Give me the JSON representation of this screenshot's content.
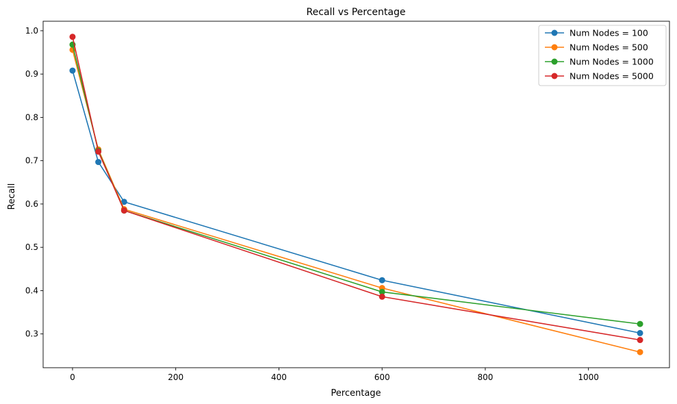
{
  "chart_data": {
    "type": "line",
    "title": "Recall vs Percentage",
    "xlabel": "Percentage",
    "ylabel": "Recall",
    "x": [
      0,
      50,
      100,
      600,
      1100
    ],
    "xlim": [
      -57,
      1157
    ],
    "ylim": [
      0.222,
      1.022
    ],
    "xticks": [
      0,
      200,
      400,
      600,
      800,
      1000
    ],
    "yticks": [
      0.3,
      0.4,
      0.5,
      0.6,
      0.7,
      0.8,
      0.9,
      1.0
    ],
    "ytick_labels": [
      "0.3",
      "0.4",
      "0.5",
      "0.6",
      "0.7",
      "0.8",
      "0.9",
      "1.0"
    ],
    "grid": false,
    "legend_position": "top-right",
    "marker": "circle",
    "series": [
      {
        "name": "Num Nodes = 100",
        "color": "#1f77b4",
        "values": [
          0.908,
          0.697,
          0.605,
          0.424,
          0.302
        ]
      },
      {
        "name": "Num Nodes = 500",
        "color": "#ff7f0e",
        "values": [
          0.956,
          0.726,
          0.588,
          0.406,
          0.258
        ]
      },
      {
        "name": "Num Nodes = 1000",
        "color": "#2ca02c",
        "values": [
          0.968,
          0.723,
          0.585,
          0.397,
          0.323
        ]
      },
      {
        "name": "Num Nodes = 5000",
        "color": "#d62728",
        "values": [
          0.986,
          0.721,
          0.585,
          0.386,
          0.286
        ]
      }
    ]
  }
}
